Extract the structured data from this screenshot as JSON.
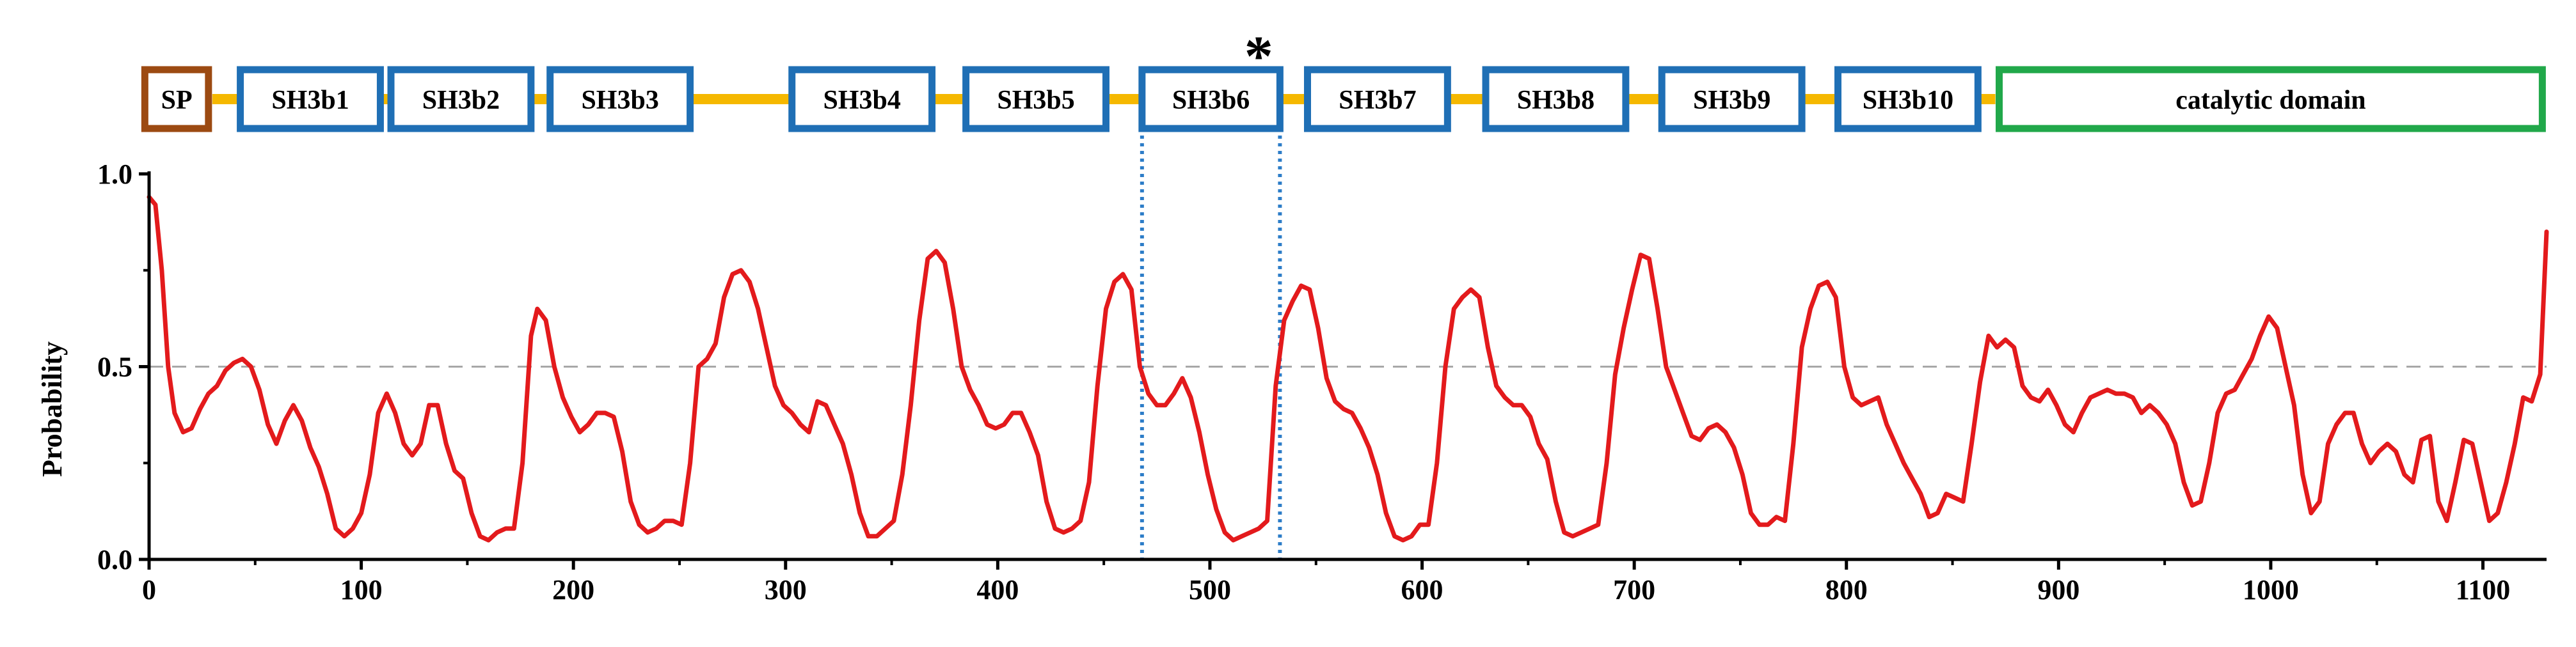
{
  "chart_data": {
    "type": "line",
    "title": "",
    "xlabel": "",
    "ylabel": "Probability",
    "xlim": [
      0,
      1130
    ],
    "ylim": [
      0,
      1
    ],
    "x_ticks": [
      0,
      100,
      200,
      300,
      400,
      500,
      600,
      700,
      800,
      900,
      1000,
      1100
    ],
    "y_ticks": [
      0,
      0.5,
      1
    ],
    "y_tick_labels": [
      "0.0",
      "0.5",
      "1.0"
    ],
    "threshold": 0.5,
    "highlight_range": [
      468,
      533
    ],
    "annotation": "*",
    "annotation_x": 523,
    "series": [
      {
        "name": "Probability",
        "color": "#e31a1c",
        "points": [
          [
            0,
            0.94
          ],
          [
            3,
            0.92
          ],
          [
            6,
            0.75
          ],
          [
            9,
            0.5
          ],
          [
            12,
            0.38
          ],
          [
            16,
            0.33
          ],
          [
            20,
            0.34
          ],
          [
            24,
            0.39
          ],
          [
            28,
            0.43
          ],
          [
            32,
            0.45
          ],
          [
            36,
            0.49
          ],
          [
            40,
            0.51
          ],
          [
            44,
            0.52
          ],
          [
            48,
            0.5
          ],
          [
            52,
            0.44
          ],
          [
            56,
            0.35
          ],
          [
            60,
            0.3
          ],
          [
            64,
            0.36
          ],
          [
            68,
            0.4
          ],
          [
            72,
            0.36
          ],
          [
            76,
            0.29
          ],
          [
            80,
            0.24
          ],
          [
            84,
            0.17
          ],
          [
            88,
            0.08
          ],
          [
            92,
            0.06
          ],
          [
            96,
            0.08
          ],
          [
            100,
            0.12
          ],
          [
            104,
            0.22
          ],
          [
            108,
            0.38
          ],
          [
            112,
            0.43
          ],
          [
            116,
            0.38
          ],
          [
            120,
            0.3
          ],
          [
            124,
            0.27
          ],
          [
            128,
            0.3
          ],
          [
            132,
            0.4
          ],
          [
            136,
            0.4
          ],
          [
            140,
            0.3
          ],
          [
            144,
            0.23
          ],
          [
            148,
            0.21
          ],
          [
            152,
            0.12
          ],
          [
            156,
            0.06
          ],
          [
            160,
            0.05
          ],
          [
            164,
            0.07
          ],
          [
            168,
            0.08
          ],
          [
            172,
            0.08
          ],
          [
            176,
            0.25
          ],
          [
            180,
            0.58
          ],
          [
            183,
            0.65
          ],
          [
            187,
            0.62
          ],
          [
            191,
            0.5
          ],
          [
            195,
            0.42
          ],
          [
            199,
            0.37
          ],
          [
            203,
            0.33
          ],
          [
            207,
            0.35
          ],
          [
            211,
            0.38
          ],
          [
            215,
            0.38
          ],
          [
            219,
            0.37
          ],
          [
            223,
            0.28
          ],
          [
            227,
            0.15
          ],
          [
            231,
            0.09
          ],
          [
            235,
            0.07
          ],
          [
            239,
            0.08
          ],
          [
            243,
            0.1
          ],
          [
            247,
            0.1
          ],
          [
            251,
            0.09
          ],
          [
            255,
            0.25
          ],
          [
            259,
            0.5
          ],
          [
            263,
            0.52
          ],
          [
            267,
            0.56
          ],
          [
            271,
            0.68
          ],
          [
            275,
            0.74
          ],
          [
            279,
            0.75
          ],
          [
            283,
            0.72
          ],
          [
            287,
            0.65
          ],
          [
            291,
            0.55
          ],
          [
            295,
            0.45
          ],
          [
            299,
            0.4
          ],
          [
            303,
            0.38
          ],
          [
            307,
            0.35
          ],
          [
            311,
            0.33
          ],
          [
            315,
            0.41
          ],
          [
            319,
            0.4
          ],
          [
            323,
            0.35
          ],
          [
            327,
            0.3
          ],
          [
            331,
            0.22
          ],
          [
            335,
            0.12
          ],
          [
            339,
            0.06
          ],
          [
            343,
            0.06
          ],
          [
            347,
            0.08
          ],
          [
            351,
            0.1
          ],
          [
            355,
            0.22
          ],
          [
            359,
            0.4
          ],
          [
            363,
            0.62
          ],
          [
            367,
            0.78
          ],
          [
            371,
            0.8
          ],
          [
            375,
            0.77
          ],
          [
            379,
            0.65
          ],
          [
            383,
            0.5
          ],
          [
            387,
            0.44
          ],
          [
            391,
            0.4
          ],
          [
            395,
            0.35
          ],
          [
            399,
            0.34
          ],
          [
            403,
            0.35
          ],
          [
            407,
            0.38
          ],
          [
            411,
            0.38
          ],
          [
            415,
            0.33
          ],
          [
            419,
            0.27
          ],
          [
            423,
            0.15
          ],
          [
            427,
            0.08
          ],
          [
            431,
            0.07
          ],
          [
            435,
            0.08
          ],
          [
            439,
            0.1
          ],
          [
            443,
            0.2
          ],
          [
            447,
            0.45
          ],
          [
            451,
            0.65
          ],
          [
            455,
            0.72
          ],
          [
            459,
            0.74
          ],
          [
            463,
            0.7
          ],
          [
            467,
            0.5
          ],
          [
            471,
            0.43
          ],
          [
            475,
            0.4
          ],
          [
            479,
            0.4
          ],
          [
            483,
            0.43
          ],
          [
            487,
            0.47
          ],
          [
            491,
            0.42
          ],
          [
            495,
            0.33
          ],
          [
            499,
            0.22
          ],
          [
            503,
            0.13
          ],
          [
            507,
            0.07
          ],
          [
            511,
            0.05
          ],
          [
            515,
            0.06
          ],
          [
            519,
            0.07
          ],
          [
            523,
            0.08
          ],
          [
            527,
            0.1
          ],
          [
            531,
            0.45
          ],
          [
            535,
            0.62
          ],
          [
            539,
            0.67
          ],
          [
            543,
            0.71
          ],
          [
            547,
            0.7
          ],
          [
            551,
            0.6
          ],
          [
            555,
            0.47
          ],
          [
            559,
            0.41
          ],
          [
            563,
            0.39
          ],
          [
            567,
            0.38
          ],
          [
            571,
            0.34
          ],
          [
            575,
            0.29
          ],
          [
            579,
            0.22
          ],
          [
            583,
            0.12
          ],
          [
            587,
            0.06
          ],
          [
            591,
            0.05
          ],
          [
            595,
            0.06
          ],
          [
            599,
            0.09
          ],
          [
            603,
            0.09
          ],
          [
            607,
            0.25
          ],
          [
            611,
            0.5
          ],
          [
            615,
            0.65
          ],
          [
            619,
            0.68
          ],
          [
            623,
            0.7
          ],
          [
            627,
            0.68
          ],
          [
            631,
            0.55
          ],
          [
            635,
            0.45
          ],
          [
            639,
            0.42
          ],
          [
            643,
            0.4
          ],
          [
            647,
            0.4
          ],
          [
            651,
            0.37
          ],
          [
            655,
            0.3
          ],
          [
            659,
            0.26
          ],
          [
            663,
            0.15
          ],
          [
            667,
            0.07
          ],
          [
            671,
            0.06
          ],
          [
            675,
            0.07
          ],
          [
            679,
            0.08
          ],
          [
            683,
            0.09
          ],
          [
            687,
            0.25
          ],
          [
            691,
            0.48
          ],
          [
            695,
            0.6
          ],
          [
            699,
            0.7
          ],
          [
            703,
            0.79
          ],
          [
            707,
            0.78
          ],
          [
            711,
            0.65
          ],
          [
            715,
            0.5
          ],
          [
            719,
            0.44
          ],
          [
            723,
            0.38
          ],
          [
            727,
            0.32
          ],
          [
            731,
            0.31
          ],
          [
            735,
            0.34
          ],
          [
            739,
            0.35
          ],
          [
            743,
            0.33
          ],
          [
            747,
            0.29
          ],
          [
            751,
            0.22
          ],
          [
            755,
            0.12
          ],
          [
            759,
            0.09
          ],
          [
            763,
            0.09
          ],
          [
            767,
            0.11
          ],
          [
            771,
            0.1
          ],
          [
            775,
            0.3
          ],
          [
            779,
            0.55
          ],
          [
            783,
            0.65
          ],
          [
            787,
            0.71
          ],
          [
            791,
            0.72
          ],
          [
            795,
            0.68
          ],
          [
            799,
            0.5
          ],
          [
            803,
            0.42
          ],
          [
            807,
            0.4
          ],
          [
            811,
            0.41
          ],
          [
            815,
            0.42
          ],
          [
            819,
            0.35
          ],
          [
            823,
            0.3
          ],
          [
            827,
            0.25
          ],
          [
            831,
            0.21
          ],
          [
            835,
            0.17
          ],
          [
            839,
            0.11
          ],
          [
            843,
            0.12
          ],
          [
            847,
            0.17
          ],
          [
            851,
            0.16
          ],
          [
            855,
            0.15
          ],
          [
            859,
            0.3
          ],
          [
            863,
            0.46
          ],
          [
            867,
            0.58
          ],
          [
            871,
            0.55
          ],
          [
            875,
            0.57
          ],
          [
            879,
            0.55
          ],
          [
            883,
            0.45
          ],
          [
            887,
            0.42
          ],
          [
            891,
            0.41
          ],
          [
            895,
            0.44
          ],
          [
            899,
            0.4
          ],
          [
            903,
            0.35
          ],
          [
            907,
            0.33
          ],
          [
            911,
            0.38
          ],
          [
            915,
            0.42
          ],
          [
            919,
            0.43
          ],
          [
            923,
            0.44
          ],
          [
            927,
            0.43
          ],
          [
            931,
            0.43
          ],
          [
            935,
            0.42
          ],
          [
            939,
            0.38
          ],
          [
            943,
            0.4
          ],
          [
            947,
            0.38
          ],
          [
            951,
            0.35
          ],
          [
            955,
            0.3
          ],
          [
            959,
            0.2
          ],
          [
            963,
            0.14
          ],
          [
            967,
            0.15
          ],
          [
            971,
            0.25
          ],
          [
            975,
            0.38
          ],
          [
            979,
            0.43
          ],
          [
            983,
            0.44
          ],
          [
            987,
            0.48
          ],
          [
            991,
            0.52
          ],
          [
            995,
            0.58
          ],
          [
            999,
            0.63
          ],
          [
            1003,
            0.6
          ],
          [
            1007,
            0.5
          ],
          [
            1011,
            0.4
          ],
          [
            1015,
            0.22
          ],
          [
            1019,
            0.12
          ],
          [
            1023,
            0.15
          ],
          [
            1027,
            0.3
          ],
          [
            1031,
            0.35
          ],
          [
            1035,
            0.38
          ],
          [
            1039,
            0.38
          ],
          [
            1043,
            0.3
          ],
          [
            1047,
            0.25
          ],
          [
            1051,
            0.28
          ],
          [
            1055,
            0.3
          ],
          [
            1059,
            0.28
          ],
          [
            1063,
            0.22
          ],
          [
            1067,
            0.2
          ],
          [
            1071,
            0.31
          ],
          [
            1075,
            0.32
          ],
          [
            1079,
            0.15
          ],
          [
            1083,
            0.1
          ],
          [
            1087,
            0.2
          ],
          [
            1091,
            0.31
          ],
          [
            1095,
            0.3
          ],
          [
            1099,
            0.2
          ],
          [
            1103,
            0.1
          ],
          [
            1107,
            0.12
          ],
          [
            1111,
            0.2
          ],
          [
            1115,
            0.3
          ],
          [
            1119,
            0.42
          ],
          [
            1123,
            0.41
          ],
          [
            1127,
            0.48
          ],
          [
            1130,
            0.85
          ]
        ]
      }
    ],
    "domains": [
      {
        "label": "SP",
        "start": -2,
        "end": 28,
        "color": "#9c4a12"
      },
      {
        "label": "SH3b1",
        "start": 43,
        "end": 109,
        "color": "#1f6fb5"
      },
      {
        "label": "SH3b2",
        "start": 114,
        "end": 180,
        "color": "#1f6fb5"
      },
      {
        "label": "SH3b3",
        "start": 189,
        "end": 255,
        "color": "#1f6fb5"
      },
      {
        "label": "SH3b4",
        "start": 303,
        "end": 369,
        "color": "#1f6fb5"
      },
      {
        "label": "SH3b5",
        "start": 385,
        "end": 451,
        "color": "#1f6fb5"
      },
      {
        "label": "SH3b6",
        "start": 468,
        "end": 533,
        "color": "#1f6fb5"
      },
      {
        "label": "SH3b7",
        "start": 546,
        "end": 612,
        "color": "#1f6fb5"
      },
      {
        "label": "SH3b8",
        "start": 630,
        "end": 696,
        "color": "#1f6fb5"
      },
      {
        "label": "SH3b9",
        "start": 713,
        "end": 779,
        "color": "#1f6fb5"
      },
      {
        "label": "SH3b10",
        "start": 796,
        "end": 862,
        "color": "#1f6fb5"
      },
      {
        "label": "catalytic domain",
        "start": 872,
        "end": 1128,
        "color": "#21a84a"
      }
    ],
    "linker_color": "#f5b800"
  }
}
